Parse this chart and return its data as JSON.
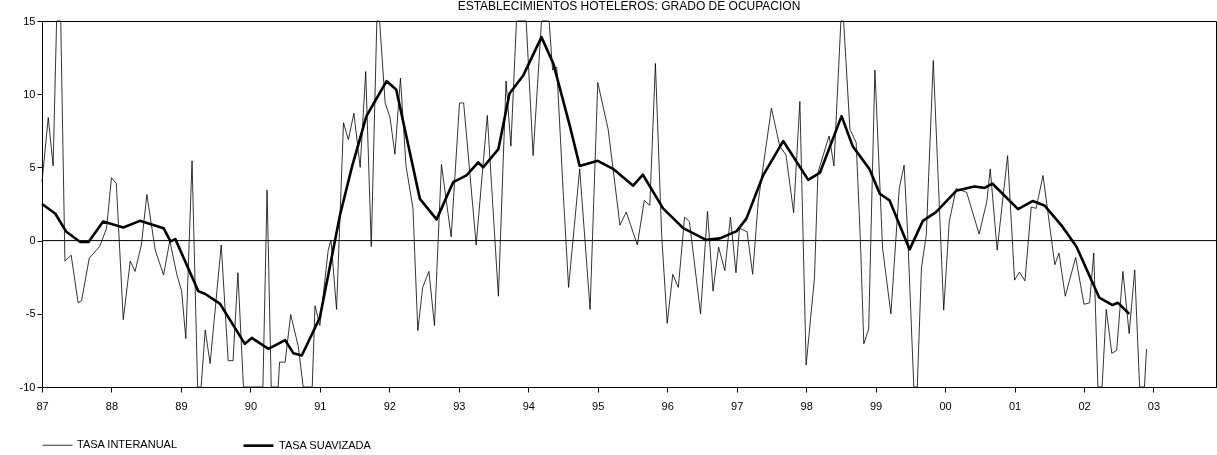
{
  "chart_data": {
    "type": "line",
    "title": "ESTABLECIMIENTOS HOTELEROS: GRADO DE OCUPACION",
    "xlim": [
      1987,
      2003.9
    ],
    "ylim": [
      -10,
      15
    ],
    "yticks": [
      -10,
      -5,
      0,
      5,
      10,
      15
    ],
    "xticks": [
      {
        "value": 1987,
        "label": "87"
      },
      {
        "value": 1988,
        "label": "88"
      },
      {
        "value": 1989,
        "label": "89"
      },
      {
        "value": 1990,
        "label": "90"
      },
      {
        "value": 1991,
        "label": "91"
      },
      {
        "value": 1992,
        "label": "92"
      },
      {
        "value": 1993,
        "label": "93"
      },
      {
        "value": 1994,
        "label": "94"
      },
      {
        "value": 1995,
        "label": "95"
      },
      {
        "value": 1996,
        "label": "96"
      },
      {
        "value": 1997,
        "label": "97"
      },
      {
        "value": 1998,
        "label": "98"
      },
      {
        "value": 1999,
        "label": "99"
      },
      {
        "value": 2000,
        "label": "00"
      },
      {
        "value": 2001,
        "label": "01"
      },
      {
        "value": 2002,
        "label": "02"
      },
      {
        "value": 2003,
        "label": "03"
      }
    ],
    "grid": false,
    "legend": "bottom",
    "marker": "none",
    "ref_lines": [
      {
        "axis": "y",
        "value": 0,
        "color": "#000000"
      }
    ],
    "series": [
      {
        "name": "TASA INTERANUAL",
        "color": "#000000",
        "x": [
          1987.0,
          1987.09,
          1987.16,
          1987.21,
          1987.27,
          1987.33,
          1987.42,
          1987.52,
          1987.57,
          1987.68,
          1987.83,
          1987.93,
          1988.0,
          1988.07,
          1988.17,
          1988.27,
          1988.34,
          1988.43,
          1988.51,
          1988.63,
          1988.75,
          1988.84,
          1988.94,
          1989.01,
          1989.07,
          1989.16,
          1989.24,
          1989.29,
          1989.35,
          1989.42,
          1989.58,
          1989.68,
          1989.75,
          1989.82,
          1989.9,
          1990.18,
          1990.24,
          1990.3,
          1990.4,
          1990.42,
          1990.5,
          1990.58,
          1990.69,
          1990.76,
          1990.89,
          1990.93,
          1991.0,
          1991.12,
          1991.16,
          1991.24,
          1991.34,
          1991.41,
          1991.49,
          1991.58,
          1991.66,
          1991.74,
          1991.82,
          1991.86,
          1991.94,
          1992.01,
          1992.08,
          1992.16,
          1992.24,
          1992.34,
          1992.41,
          1992.48,
          1992.57,
          1992.65,
          1992.75,
          1992.89,
          1993.01,
          1993.07,
          1993.25,
          1993.41,
          1993.57,
          1993.68,
          1993.75,
          1993.83,
          1993.97,
          1994.07,
          1994.19,
          1994.3,
          1994.35,
          1994.41,
          1994.5,
          1994.58,
          1994.74,
          1994.89,
          1995.0,
          1995.15,
          1995.32,
          1995.41,
          1995.57,
          1995.67,
          1995.75,
          1995.83,
          1995.92,
          1996.0,
          1996.08,
          1996.16,
          1996.25,
          1996.32,
          1996.48,
          1996.58,
          1996.66,
          1996.74,
          1996.83,
          1996.91,
          1996.99,
          1997.04,
          1997.15,
          1997.23,
          1997.31,
          1997.5,
          1997.62,
          1997.71,
          1997.82,
          1997.91,
          1998.0,
          1998.12,
          1998.17,
          1998.33,
          1998.4,
          1998.5,
          1998.54,
          1998.63,
          1998.72,
          1998.78,
          1998.83,
          1998.9,
          1998.99,
          1999.1,
          1999.22,
          1999.34,
          1999.41,
          1999.46,
          1999.55,
          1999.6,
          1999.66,
          1999.73,
          1999.83,
          1999.98,
          2000.06,
          2000.16,
          2000.31,
          2000.49,
          2000.6,
          2000.65,
          2000.75,
          2000.9,
          2001.0,
          2001.07,
          2001.15,
          2001.24,
          2001.31,
          2001.41,
          2001.51,
          2001.58,
          2001.64,
          2001.73,
          2001.88,
          2002.0,
          2002.08,
          2002.14,
          2002.2,
          2002.26,
          2002.32,
          2002.4,
          2002.47,
          2002.56,
          2002.65,
          2002.73,
          2002.8,
          2002.87,
          2002.9
        ],
        "values": [
          4.0,
          8.4,
          5.1,
          15,
          15,
          -1.4,
          -1.0,
          -4.25,
          -4.1,
          -1.2,
          -0.4,
          0.85,
          4.3,
          3.9,
          -5.4,
          -1.4,
          -2.1,
          -0.3,
          3.15,
          -0.65,
          -2.35,
          0,
          -2.3,
          -3.45,
          -6.7,
          5.45,
          -10,
          -10,
          -6.1,
          -8.4,
          -0.3,
          -8.2,
          -8.2,
          -2.2,
          -10,
          -10,
          3.45,
          -10,
          -10,
          -8.3,
          -8.3,
          -5.05,
          -7.25,
          -10,
          -10,
          -4.45,
          -5.8,
          -0.65,
          0.05,
          -4.7,
          8.05,
          6.9,
          8.7,
          5.0,
          11.55,
          -0.4,
          15,
          15,
          9.4,
          8.4,
          5.9,
          11.1,
          5.1,
          2.2,
          -6.15,
          -3.2,
          -2.1,
          -5.8,
          5.2,
          0.25,
          9.4,
          9.4,
          -0.3,
          8.55,
          -3.8,
          10.9,
          6.45,
          15,
          15,
          5.8,
          15,
          15,
          11.65,
          11.85,
          3.55,
          -3.2,
          4.9,
          -4.7,
          10.8,
          7.6,
          1.05,
          1.95,
          -0.3,
          2.75,
          2.4,
          12.1,
          0.4,
          -5.65,
          -2.3,
          -3.2,
          1.6,
          1.3,
          -5.0,
          2.0,
          -3.45,
          -0.45,
          -2.05,
          1.6,
          -2.2,
          0.85,
          0.6,
          -2.3,
          2.65,
          9.05,
          6.45,
          5.85,
          1.9,
          9.5,
          -8.5,
          -2.55,
          4.65,
          7.15,
          5.1,
          15,
          15,
          7.6,
          6.7,
          0.15,
          -7.05,
          -6.05,
          11.65,
          -0.5,
          -5.0,
          3.55,
          5.15,
          0.6,
          -10,
          -10,
          -1.85,
          0.4,
          12.3,
          -4.75,
          1.3,
          3.55,
          3.3,
          0.45,
          2.65,
          4.9,
          -0.65,
          5.8,
          -2.7,
          -2.15,
          -2.75,
          2.3,
          2.2,
          4.45,
          0.85,
          -1.65,
          -0.85,
          -3.8,
          -1.15,
          -4.35,
          -4.25,
          -0.85,
          -10,
          -10,
          -4.7,
          -7.7,
          -7.5,
          -2.1,
          -6.35,
          -2.0,
          -10,
          -10,
          -7.4
        ]
      },
      {
        "name": "TASA SUAVIZADA",
        "color": "#000000",
        "x": [
          1987.0,
          1987.19,
          1987.35,
          1987.55,
          1987.67,
          1987.88,
          1988.17,
          1988.41,
          1988.75,
          1988.85,
          1988.92,
          1989.25,
          1989.35,
          1989.56,
          1989.92,
          1990.02,
          1990.26,
          1990.5,
          1990.62,
          1990.74,
          1991.0,
          1991.29,
          1991.46,
          1991.67,
          1991.96,
          1992.1,
          1992.44,
          1992.68,
          1992.92,
          1993.11,
          1993.28,
          1993.35,
          1993.57,
          1993.73,
          1993.93,
          1994.19,
          1994.36,
          1994.6,
          1994.74,
          1995.0,
          1995.22,
          1995.51,
          1995.65,
          1995.94,
          1996.23,
          1996.56,
          1996.76,
          1997.0,
          1997.14,
          1997.38,
          1997.67,
          1998.03,
          1998.2,
          1998.51,
          1998.67,
          1998.91,
          1999.06,
          1999.2,
          1999.49,
          1999.68,
          1999.87,
          2000.16,
          2000.42,
          2000.57,
          2000.68,
          2001.05,
          2001.26,
          2001.43,
          2001.69,
          2001.89,
          2002.22,
          2002.41,
          2002.49,
          2002.65
        ],
        "values": [
          2.5,
          1.85,
          0.6,
          -0.1,
          -0.1,
          1.3,
          0.9,
          1.35,
          0.85,
          -0.05,
          0.1,
          -3.45,
          -3.65,
          -4.3,
          -7.05,
          -6.65,
          -7.4,
          -6.8,
          -7.7,
          -7.85,
          -5.25,
          1.75,
          5.0,
          8.5,
          10.9,
          10.3,
          2.85,
          1.45,
          4.0,
          4.45,
          5.35,
          5.0,
          6.25,
          10.05,
          11.3,
          13.9,
          12.1,
          7.8,
          5.1,
          5.45,
          4.9,
          3.75,
          4.5,
          2.2,
          0.85,
          0.05,
          0.15,
          0.65,
          1.5,
          4.45,
          6.8,
          4.15,
          4.65,
          8.5,
          6.45,
          4.9,
          3.2,
          2.75,
          -0.6,
          1.35,
          1.95,
          3.4,
          3.7,
          3.6,
          3.9,
          2.15,
          2.7,
          2.4,
          0.95,
          -0.4,
          -3.9,
          -4.4,
          -4.25,
          -5.0
        ]
      }
    ]
  }
}
